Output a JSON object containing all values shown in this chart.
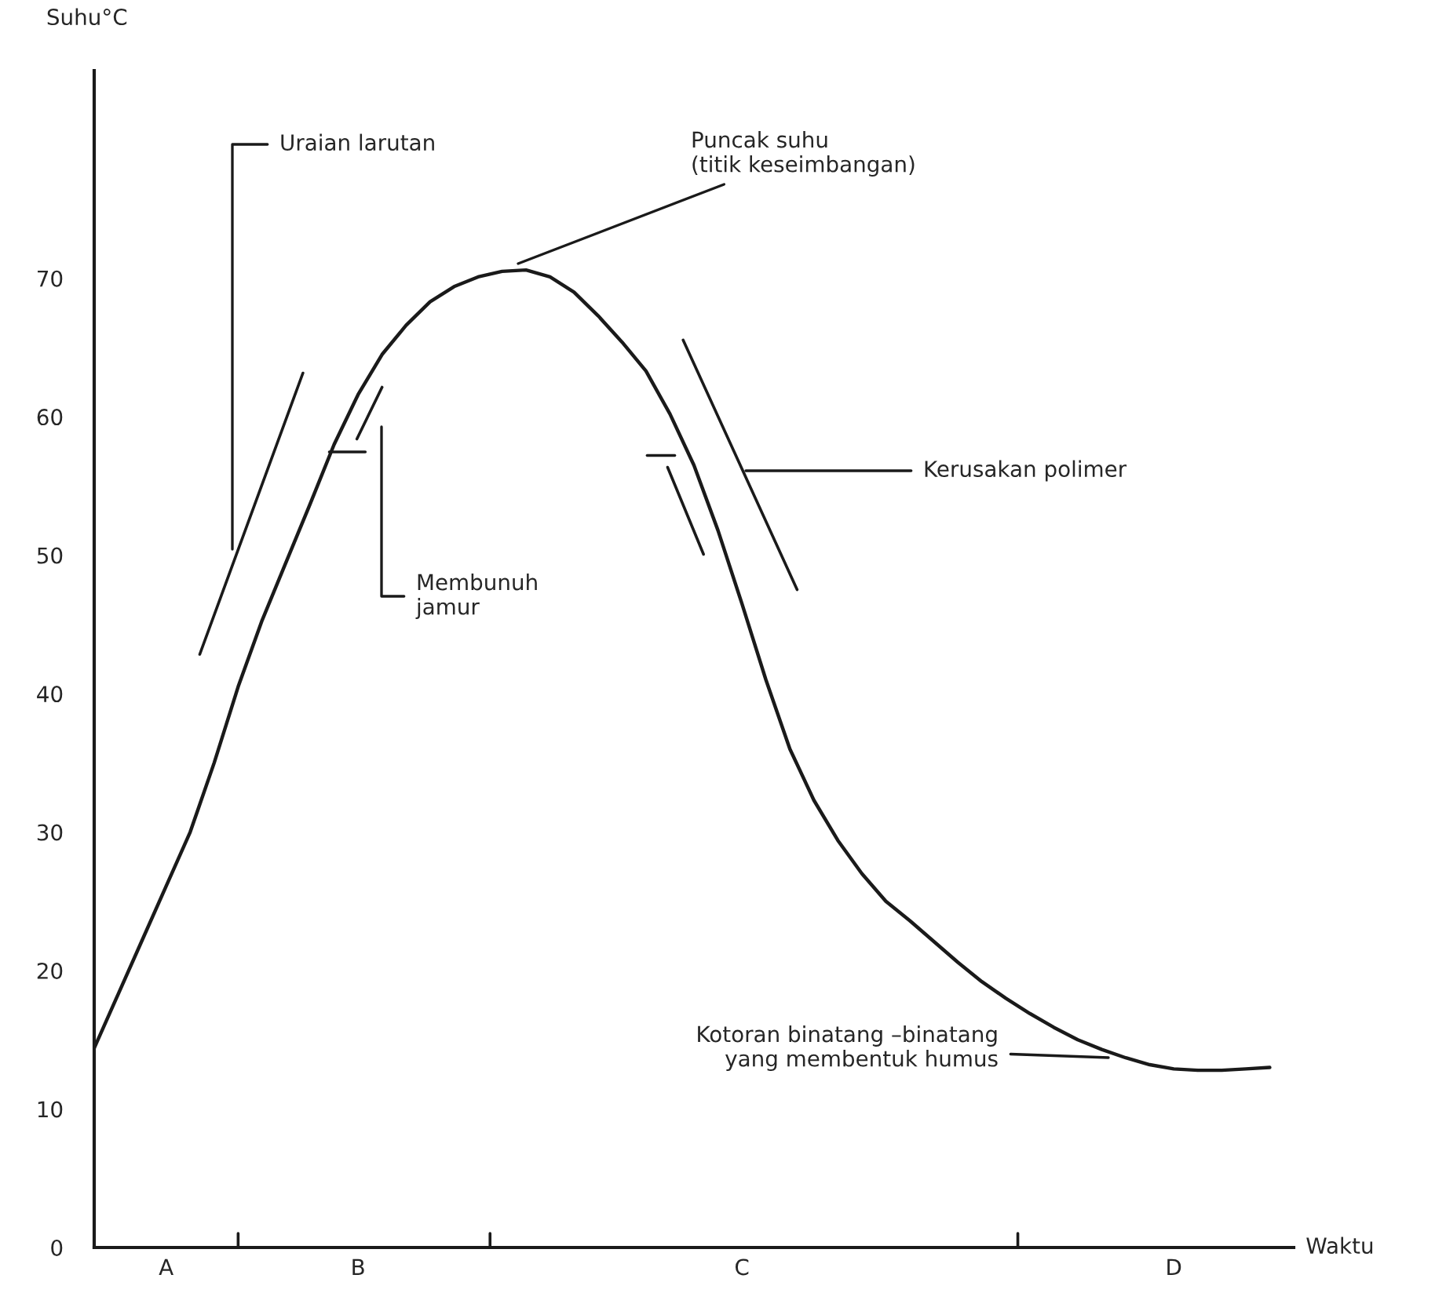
{
  "chart_data": {
    "type": "line",
    "xlabel": "Waktu",
    "ylabel": "Suhu°C",
    "categories": [
      null,
      null,
      null,
      "A",
      null,
      null,
      null,
      null,
      null,
      null,
      null,
      "B",
      null,
      null,
      null,
      null,
      null,
      null,
      null,
      null,
      null,
      null,
      null,
      null,
      null,
      null,
      null,
      "C",
      null,
      null,
      null,
      null,
      null,
      null,
      null,
      null,
      null,
      null,
      null,
      null,
      null,
      null,
      null,
      null,
      null,
      "D",
      null,
      null,
      null,
      null
    ],
    "series": [
      {
        "color": "#1a1a1a",
        "values": [
          14.4,
          18.3,
          22.2,
          26.1,
          30.0,
          35.0,
          40.5,
          45.3,
          49.5,
          53.7,
          58.0,
          61.6,
          64.5,
          66.6,
          68.3,
          69.4,
          70.1,
          70.5,
          70.6,
          70.1,
          69.0,
          67.3,
          65.4,
          63.3,
          60.2,
          56.5,
          51.8,
          46.5,
          41.0,
          36.0,
          32.3,
          29.4,
          27.0,
          25.0,
          23.6,
          22.1,
          20.6,
          19.2,
          18.0,
          16.9,
          15.9,
          15.0,
          14.3,
          13.7,
          13.2,
          12.9,
          12.8,
          12.8,
          12.9,
          13.0
        ]
      }
    ],
    "ylim": [
      0,
      85
    ],
    "yticks": [
      0,
      10,
      20,
      30,
      40,
      50,
      60,
      70
    ],
    "grid": false,
    "marker": "none",
    "line_style": "solid",
    "annotations": [
      "Uraian larutan",
      "Puncak suhu\n(titik keseimbangan)",
      "Membunuh\njamur",
      "Kerusakan polimer",
      "Kotoran binatang –binatang\nyang membentuk humus"
    ]
  }
}
